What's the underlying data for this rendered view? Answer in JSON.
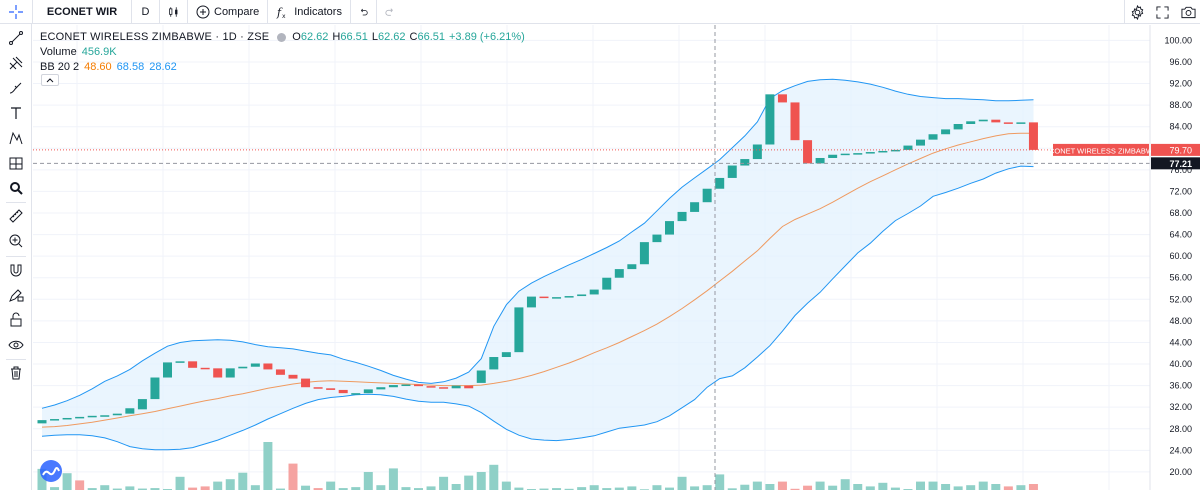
{
  "toolbar": {
    "symbol": "ECONET WIR",
    "interval": "D",
    "compare_label": "Compare",
    "indicators_label": "Indicators"
  },
  "legend": {
    "title": "ECONET WIRELESS ZIMBABWE · 1D · ZSE",
    "ohlc": {
      "o_label": "O",
      "o": "62.62",
      "h_label": "H",
      "h": "66.51",
      "l_label": "L",
      "l": "62.62",
      "c_label": "C",
      "c": "66.51",
      "change": "+3.89 (+6.21%)"
    },
    "volume_label": "Volume",
    "volume_value": "456.9K",
    "bb_label": "BB 20 2",
    "bb_basis": "48.60",
    "bb_upper": "68.58",
    "bb_lower": "28.62"
  },
  "colors": {
    "up": "#26a69a",
    "down": "#ef5350",
    "vol_up": "#8fd0c7",
    "vol_down": "#f5a3a1",
    "bb_band": "#2196f3",
    "bb_fill": "#e3f2fd",
    "bb_basis": "#ef9a60",
    "crosshair": "#9598a1",
    "price_label_bg": "#ef5350",
    "crosshair_label_bg": "#131722"
  },
  "price_label": {
    "text": "ECONET WIRELESS ZIMBABWE",
    "value": "79.70"
  },
  "crosshair_label": "77.21",
  "chart_data": {
    "type": "candlestick",
    "y_ticks": [
      "100.00",
      "96.00",
      "92.00",
      "88.00",
      "84.00",
      "80.00",
      "76.00",
      "72.00",
      "68.00",
      "64.00",
      "60.00",
      "56.00",
      "52.00",
      "48.00",
      "44.00",
      "40.00",
      "36.00",
      "32.00",
      "28.00",
      "24.00",
      "20.00"
    ],
    "ylim": [
      18.5,
      101
    ],
    "last_price": 79.7,
    "crosshair_price": 77.21,
    "candles": [
      {
        "o": 29.0,
        "c": 29.6
      },
      {
        "o": 29.6,
        "c": 29.8
      },
      {
        "o": 29.8,
        "c": 30.0
      },
      {
        "o": 30.0,
        "c": 30.2
      },
      {
        "o": 30.2,
        "c": 30.4
      },
      {
        "o": 30.4,
        "c": 30.5
      },
      {
        "o": 30.5,
        "c": 30.8
      },
      {
        "o": 30.8,
        "c": 31.8
      },
      {
        "o": 31.6,
        "c": 33.5
      },
      {
        "o": 33.5,
        "c": 37.5
      },
      {
        "o": 37.5,
        "c": 40.3
      },
      {
        "o": 40.3,
        "c": 40.5
      },
      {
        "o": 40.5,
        "c": 39.3
      },
      {
        "o": 39.3,
        "c": 39.2
      },
      {
        "o": 39.2,
        "c": 37.5
      },
      {
        "o": 37.5,
        "c": 39.2
      },
      {
        "o": 39.2,
        "c": 39.5
      },
      {
        "o": 39.5,
        "c": 40.1
      },
      {
        "o": 40.1,
        "c": 39.0
      },
      {
        "o": 39.0,
        "c": 38.0
      },
      {
        "o": 38.0,
        "c": 37.3
      },
      {
        "o": 37.3,
        "c": 35.7
      },
      {
        "o": 35.7,
        "c": 35.5
      },
      {
        "o": 35.5,
        "c": 35.2
      },
      {
        "o": 35.2,
        "c": 34.6
      },
      {
        "o": 34.6,
        "c": 34.6
      },
      {
        "o": 34.6,
        "c": 35.3
      },
      {
        "o": 35.3,
        "c": 35.7
      },
      {
        "o": 35.7,
        "c": 36.1
      },
      {
        "o": 36.1,
        "c": 36.2
      },
      {
        "o": 36.2,
        "c": 35.9
      },
      {
        "o": 35.9,
        "c": 35.7
      },
      {
        "o": 35.7,
        "c": 35.5
      },
      {
        "o": 35.5,
        "c": 36.0
      },
      {
        "o": 36.0,
        "c": 35.5
      },
      {
        "o": 36.5,
        "c": 38.8
      },
      {
        "o": 39.0,
        "c": 41.3
      },
      {
        "o": 41.3,
        "c": 42.2
      },
      {
        "o": 42.2,
        "c": 50.5
      },
      {
        "o": 50.5,
        "c": 52.5
      },
      {
        "o": 52.5,
        "c": 52.3
      },
      {
        "o": 52.3,
        "c": 52.4
      },
      {
        "o": 52.4,
        "c": 52.6
      },
      {
        "o": 52.6,
        "c": 52.9
      },
      {
        "o": 52.9,
        "c": 53.8
      },
      {
        "o": 53.8,
        "c": 56.0
      },
      {
        "o": 56.0,
        "c": 57.6
      },
      {
        "o": 57.6,
        "c": 58.5
      },
      {
        "o": 58.5,
        "c": 62.6
      },
      {
        "o": 62.6,
        "c": 64.0
      },
      {
        "o": 64.0,
        "c": 66.5
      },
      {
        "o": 66.5,
        "c": 68.2
      },
      {
        "o": 68.2,
        "c": 70.0
      },
      {
        "o": 70.0,
        "c": 72.5
      },
      {
        "o": 72.5,
        "c": 74.5
      },
      {
        "o": 74.5,
        "c": 76.8
      },
      {
        "o": 76.8,
        "c": 78.0
      },
      {
        "o": 78.0,
        "c": 80.7
      },
      {
        "o": 80.7,
        "c": 90.0
      },
      {
        "o": 90.0,
        "c": 88.5
      },
      {
        "o": 88.5,
        "c": 81.5
      },
      {
        "o": 81.5,
        "c": 77.2
      },
      {
        "o": 77.2,
        "c": 78.2
      },
      {
        "o": 78.2,
        "c": 78.8
      },
      {
        "o": 78.8,
        "c": 79.0
      },
      {
        "o": 79.0,
        "c": 79.1
      },
      {
        "o": 79.1,
        "c": 79.3
      },
      {
        "o": 79.3,
        "c": 79.5
      },
      {
        "o": 79.5,
        "c": 79.7
      },
      {
        "o": 79.7,
        "c": 80.5
      },
      {
        "o": 80.5,
        "c": 81.6
      },
      {
        "o": 81.6,
        "c": 82.6
      },
      {
        "o": 82.6,
        "c": 83.5
      },
      {
        "o": 83.5,
        "c": 84.5
      },
      {
        "o": 84.5,
        "c": 85.0
      },
      {
        "o": 85.0,
        "c": 85.3
      },
      {
        "o": 85.3,
        "c": 84.8
      },
      {
        "o": 84.8,
        "c": 84.7
      },
      {
        "o": 84.7,
        "c": 84.8
      },
      {
        "o": 84.8,
        "c": 79.7
      }
    ],
    "bb_upper": [
      31.8,
      32.4,
      33.2,
      34.2,
      35.4,
      36.8,
      37.8,
      39.0,
      40.6,
      42.0,
      43.3,
      44.0,
      44.3,
      44.4,
      44.5,
      44.4,
      44.1,
      43.6,
      43.2,
      43.0,
      42.8,
      42.4,
      42.0,
      41.7,
      40.9,
      40.3,
      39.6,
      38.8,
      37.9,
      37.2,
      36.6,
      36.4,
      36.7,
      37.4,
      38.5,
      41.0,
      47.0,
      51.0,
      53.5,
      55.0,
      56.2,
      57.3,
      58.4,
      59.4,
      60.5,
      61.6,
      62.8,
      64.5,
      66.1,
      68.4,
      70.7,
      72.8,
      74.5,
      76.2,
      77.9,
      80.1,
      82.3,
      84.9,
      89.2,
      90.7,
      91.6,
      92.4,
      92.7,
      92.8,
      92.6,
      92.3,
      91.9,
      91.3,
      90.6,
      90.0,
      89.6,
      89.4,
      89.2,
      89.2,
      89.1,
      89.0,
      88.8,
      88.8,
      88.9,
      89.0
    ],
    "bb_lower": [
      26.6,
      26.8,
      26.9,
      26.9,
      26.7,
      26.3,
      25.6,
      24.7,
      24.3,
      24.1,
      24.1,
      24.2,
      24.5,
      25.2,
      25.9,
      26.8,
      27.7,
      28.7,
      29.8,
      30.8,
      31.8,
      32.7,
      33.4,
      33.8,
      34.0,
      34.3,
      34.4,
      34.3,
      34.0,
      33.5,
      33.1,
      32.9,
      32.9,
      32.6,
      32.2,
      31.0,
      29.4,
      27.9,
      26.8,
      26.1,
      25.9,
      25.8,
      26.0,
      26.3,
      26.7,
      27.4,
      28.1,
      28.4,
      28.7,
      29.3,
      30.4,
      31.9,
      33.4,
      35.7,
      37.3,
      37.8,
      39.3,
      41.3,
      43.4,
      46.1,
      49.0,
      51.3,
      53.3,
      55.8,
      58.2,
      60.6,
      62.4,
      64.6,
      66.6,
      67.9,
      69.3,
      71.1,
      71.8,
      72.6,
      73.5,
      74.3,
      75.4,
      76.2,
      76.7,
      76.6
    ],
    "bb_basis": [
      28.3,
      28.4,
      28.6,
      28.9,
      29.2,
      29.6,
      30.0,
      30.4,
      30.8,
      31.2,
      31.7,
      32.2,
      32.7,
      33.2,
      33.6,
      34.1,
      34.5,
      35.0,
      35.5,
      35.9,
      36.3,
      36.6,
      36.8,
      36.9,
      36.8,
      36.7,
      36.6,
      36.5,
      36.4,
      36.3,
      36.2,
      36.1,
      36.0,
      36.0,
      36.0,
      36.1,
      36.4,
      36.8,
      37.3,
      37.9,
      38.6,
      39.4,
      40.2,
      41.1,
      42.1,
      43.0,
      44.0,
      45.1,
      46.2,
      47.4,
      48.8,
      50.3,
      51.9,
      53.6,
      55.4,
      57.2,
      59.1,
      61.0,
      63.3,
      65.5,
      66.8,
      67.8,
      68.8,
      70.0,
      71.3,
      72.6,
      73.8,
      74.9,
      76.0,
      77.1,
      78.1,
      79.1,
      79.9,
      80.6,
      81.2,
      81.8,
      82.3,
      82.7,
      82.8,
      82.8
    ],
    "volume_ratio": [
      0.88,
      0.12,
      0.7,
      0.4,
      0.08,
      0.2,
      0.06,
      0.15,
      0.06,
      0.08,
      0.04,
      0.55,
      0.1,
      0.15,
      0.35,
      0.45,
      0.72,
      0.2,
      2.0,
      0.06,
      1.1,
      0.18,
      0.08,
      0.35,
      0.08,
      0.12,
      0.75,
      0.2,
      0.9,
      0.12,
      0.08,
      0.15,
      0.55,
      0.25,
      0.6,
      0.75,
      1.05,
      0.35,
      0.1,
      0.04,
      0.06,
      0.08,
      0.05,
      0.12,
      0.2,
      0.08,
      0.1,
      0.15,
      0.03,
      0.2,
      0.1,
      0.55,
      0.15,
      0.2,
      0.65,
      0.07,
      0.22,
      0.35,
      0.25,
      0.35,
      0.05,
      0.18,
      0.35,
      0.18,
      0.45,
      0.25,
      0.15,
      0.3,
      0.1,
      0.04,
      0.35,
      0.35,
      0.25,
      0.15,
      0.2,
      0.35,
      0.25,
      0.15,
      0.2,
      0.25
    ],
    "volume_down": [
      3,
      12,
      13,
      20,
      22,
      59,
      60,
      61,
      77,
      79
    ]
  }
}
